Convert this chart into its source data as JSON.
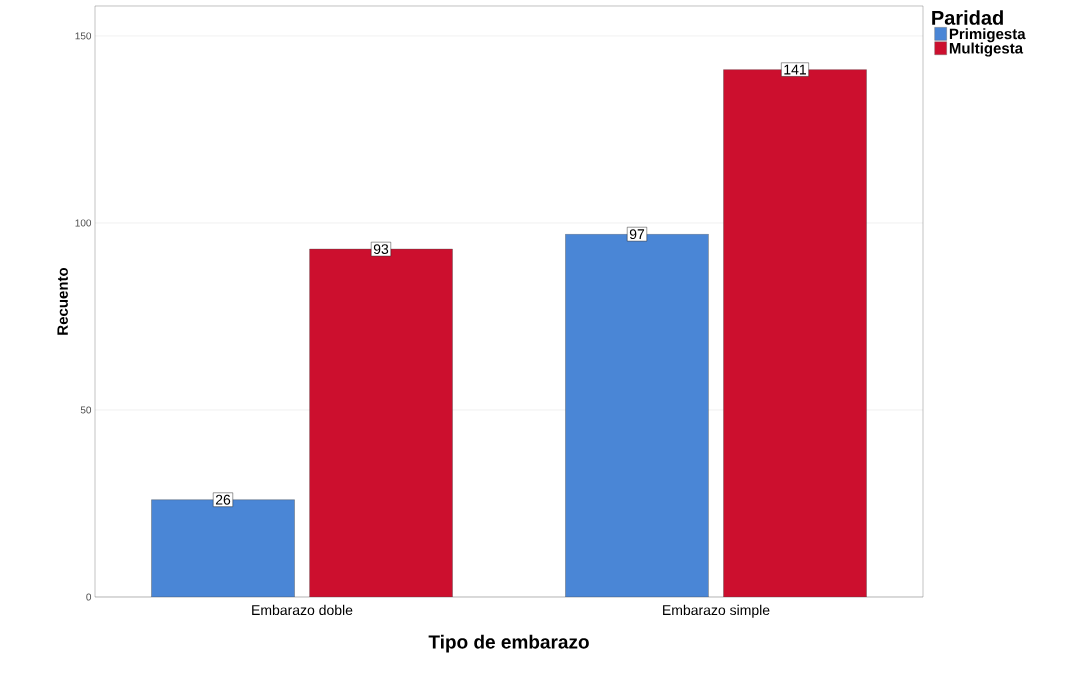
{
  "chart_data": {
    "type": "bar",
    "xlabel": "Tipo de embarazo",
    "ylabel": "Recuento",
    "legend_title": "Paridad",
    "categories": [
      "Embarazo doble",
      "Embarazo simple"
    ],
    "series": [
      {
        "name": "Primigesta",
        "color": "#4a86d6",
        "values": [
          26,
          97
        ]
      },
      {
        "name": "Multigesta",
        "color": "#cc0f2e",
        "values": [
          93,
          141
        ]
      }
    ],
    "ylim": [
      0,
      158
    ],
    "yticks": [
      0,
      50,
      100,
      150
    ],
    "grid": "y",
    "legend": "top right",
    "data_labels": true
  }
}
